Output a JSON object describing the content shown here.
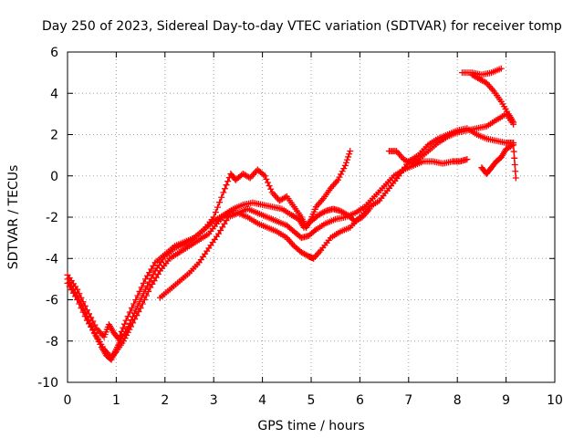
{
  "chart_data": {
    "type": "scatter",
    "title": "Day 250 of 2023, Sidereal Day-to-day VTEC variation (SDTVAR) for receiver tomp",
    "xlabel": "GPS time / hours",
    "ylabel": "SDTVAR / TECUs",
    "xlim": [
      0,
      10
    ],
    "ylim": [
      -10,
      6
    ],
    "x_ticks": [
      "0",
      "1",
      "2",
      "3",
      "4",
      "5",
      "6",
      "7",
      "8",
      "9",
      "10"
    ],
    "y_ticks": [
      "-10",
      "-8",
      "-6",
      "-4",
      "-2",
      "0",
      "2",
      "4",
      "6"
    ],
    "grid": true,
    "marker_color": "#ff0000",
    "marker": "plus",
    "series": [
      {
        "x": [
          0.0,
          0.2,
          0.4,
          0.55,
          0.7,
          0.8,
          0.9,
          1.0,
          1.1,
          1.25,
          1.4,
          1.6,
          1.8,
          2.0,
          2.2,
          2.4,
          2.6,
          2.8,
          3.0,
          3.2,
          3.35,
          3.45,
          3.6,
          3.75,
          3.9,
          4.05,
          4.2,
          4.35,
          4.5,
          4.65,
          4.8,
          4.9,
          5.0,
          5.1,
          5.25,
          5.4,
          5.55,
          5.7,
          5.8
        ],
        "y": [
          -5.0,
          -5.8,
          -6.8,
          -7.6,
          -8.3,
          -8.7,
          -8.9,
          -8.4,
          -7.9,
          -7.3,
          -6.5,
          -5.5,
          -4.6,
          -3.9,
          -3.5,
          -3.3,
          -3.0,
          -2.6,
          -2.0,
          -0.8,
          0.1,
          -0.2,
          0.1,
          -0.1,
          0.3,
          0.0,
          -0.8,
          -1.2,
          -1.0,
          -1.5,
          -2.0,
          -2.5,
          -2.1,
          -1.5,
          -1.1,
          -0.6,
          -0.2,
          0.5,
          1.2
        ]
      },
      {
        "x": [
          0.0,
          0.2,
          0.4,
          0.6,
          0.75,
          0.85,
          0.95,
          1.05,
          1.2,
          1.4,
          1.6,
          1.8,
          2.0,
          2.2,
          2.4,
          2.6,
          2.8,
          3.0,
          3.2,
          3.4,
          3.6,
          3.8,
          4.0,
          4.2,
          4.4,
          4.6,
          4.75,
          4.85,
          5.0,
          5.15,
          5.3,
          5.45,
          5.6,
          5.75,
          5.9,
          6.05,
          6.2
        ],
        "y": [
          -4.8,
          -5.5,
          -6.5,
          -7.4,
          -7.8,
          -7.2,
          -7.6,
          -7.9,
          -7.0,
          -6.0,
          -5.0,
          -4.2,
          -3.8,
          -3.4,
          -3.2,
          -3.0,
          -2.6,
          -2.2,
          -1.9,
          -1.6,
          -1.4,
          -1.3,
          -1.4,
          -1.5,
          -1.6,
          -1.9,
          -2.1,
          -2.5,
          -2.2,
          -1.9,
          -1.7,
          -1.6,
          -1.7,
          -1.9,
          -2.2,
          -2.0,
          -1.6
        ]
      },
      {
        "x": [
          0.0,
          0.2,
          0.4,
          0.6,
          0.75,
          0.9,
          1.0,
          1.15,
          1.3,
          1.5,
          1.7,
          1.9,
          2.1,
          2.3,
          2.5,
          2.7,
          2.9,
          3.1,
          3.3,
          3.5,
          3.7,
          3.9,
          4.1,
          4.3,
          4.5,
          4.65,
          4.8,
          4.95,
          5.05,
          5.2,
          5.4,
          5.6,
          5.8,
          6.0,
          6.2,
          6.4,
          6.6,
          6.8,
          7.0,
          7.2,
          7.4,
          7.6,
          7.8,
          8.0,
          8.2,
          8.4,
          8.6,
          8.8,
          9.0,
          9.15
        ],
        "y": [
          -5.2,
          -6.0,
          -7.0,
          -7.8,
          -8.4,
          -8.8,
          -8.5,
          -8.0,
          -7.3,
          -6.4,
          -5.4,
          -4.6,
          -4.0,
          -3.7,
          -3.4,
          -3.1,
          -2.8,
          -2.2,
          -1.8,
          -1.8,
          -2.0,
          -2.3,
          -2.5,
          -2.7,
          -3.0,
          -3.4,
          -3.7,
          -3.9,
          -4.0,
          -3.6,
          -3.0,
          -2.7,
          -2.5,
          -2.0,
          -1.5,
          -1.2,
          -0.6,
          0.0,
          0.7,
          1.0,
          1.5,
          1.8,
          2.0,
          2.2,
          2.3,
          2.0,
          1.8,
          1.7,
          1.6,
          1.6
        ]
      },
      {
        "x": [
          1.9,
          2.1,
          2.3,
          2.5,
          2.7,
          2.9,
          3.1,
          3.3,
          3.5,
          3.7,
          3.9,
          4.1,
          4.3,
          4.5,
          4.65,
          4.8,
          4.95,
          5.1,
          5.3,
          5.5,
          5.7,
          5.9,
          6.1,
          6.3,
          6.5,
          6.7,
          6.9,
          7.1,
          7.3,
          7.5,
          7.7,
          7.9,
          8.05,
          8.2
        ],
        "y": [
          -5.9,
          -5.5,
          -5.1,
          -4.7,
          -4.2,
          -3.5,
          -2.8,
          -2.0,
          -1.8,
          -1.6,
          -1.8,
          -2.0,
          -2.2,
          -2.4,
          -2.7,
          -3.0,
          -2.9,
          -2.6,
          -2.3,
          -2.1,
          -2.0,
          -1.8,
          -1.5,
          -1.0,
          -0.5,
          0.0,
          0.3,
          0.5,
          0.7,
          0.7,
          0.6,
          0.7,
          0.7,
          0.8
        ]
      },
      {
        "x": [
          6.6,
          6.75,
          6.9,
          7.05,
          7.2,
          7.4,
          7.6,
          7.8,
          8.0,
          8.2,
          8.4,
          8.6,
          8.8,
          9.0,
          9.15
        ],
        "y": [
          1.2,
          1.2,
          0.8,
          0.6,
          0.8,
          1.2,
          1.6,
          1.9,
          2.1,
          2.2,
          2.3,
          2.4,
          2.7,
          3.0,
          2.5
        ]
      },
      {
        "x": [
          8.1,
          8.3,
          8.5,
          8.7,
          8.9
        ],
        "y": [
          5.0,
          5.0,
          4.9,
          5.0,
          5.2
        ]
      },
      {
        "x": [
          8.3,
          8.45,
          8.6,
          8.75,
          8.9,
          9.05,
          9.15
        ],
        "y": [
          4.9,
          4.7,
          4.5,
          4.1,
          3.6,
          3.0,
          2.6
        ]
      },
      {
        "x": [
          8.5,
          8.6,
          8.7,
          8.8,
          8.9,
          9.0,
          9.15,
          9.2
        ],
        "y": [
          0.4,
          0.1,
          0.4,
          0.7,
          0.9,
          1.3,
          1.5,
          -0.1
        ]
      }
    ]
  }
}
